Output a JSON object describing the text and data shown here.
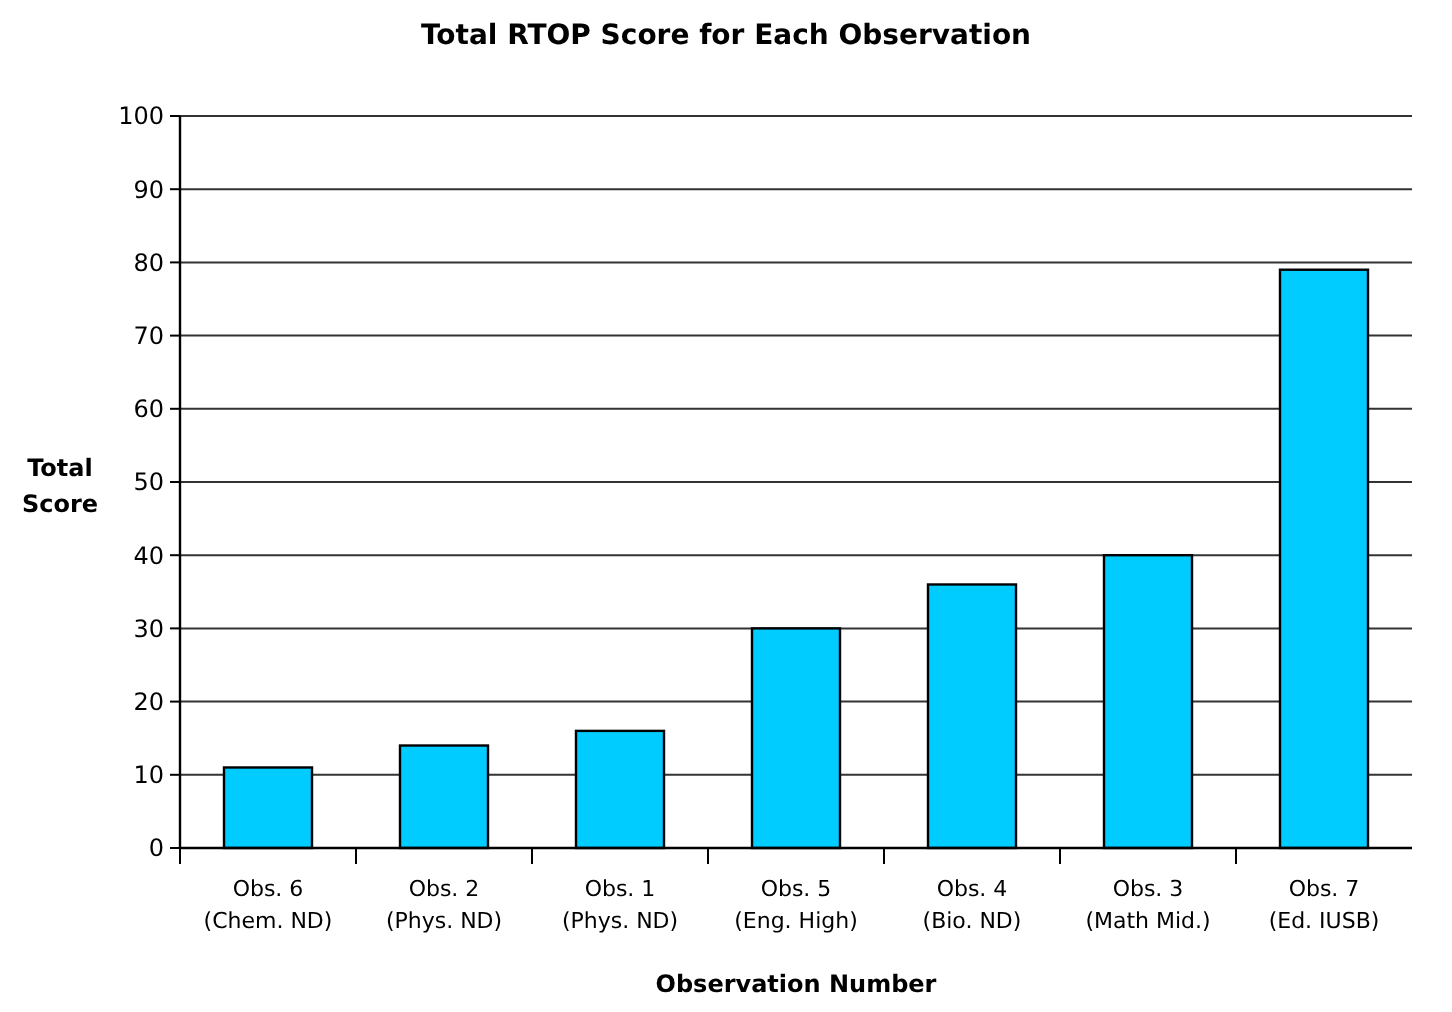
{
  "chart_data": {
    "type": "bar",
    "title": "Total RTOP Score for Each Observation",
    "xlabel": "Observation Number",
    "ylabel": "Total Score",
    "categories": [
      "Obs. 6 (Chem. ND)",
      "Obs. 2 (Phys. ND)",
      "Obs. 1 (Phys. ND)",
      "Obs. 5 (Eng. High)",
      "Obs. 4 (Bio. ND)",
      "Obs. 3 (Math Mid.)",
      "Obs. 7 (Ed. IUSB)"
    ],
    "values": [
      11,
      14,
      16,
      30,
      36,
      40,
      79
    ],
    "color": "#00ccff",
    "ylim": [
      0,
      100
    ],
    "yticks": [
      0,
      10,
      20,
      30,
      40,
      50,
      60,
      70,
      80,
      90,
      100
    ],
    "grid": "y"
  }
}
